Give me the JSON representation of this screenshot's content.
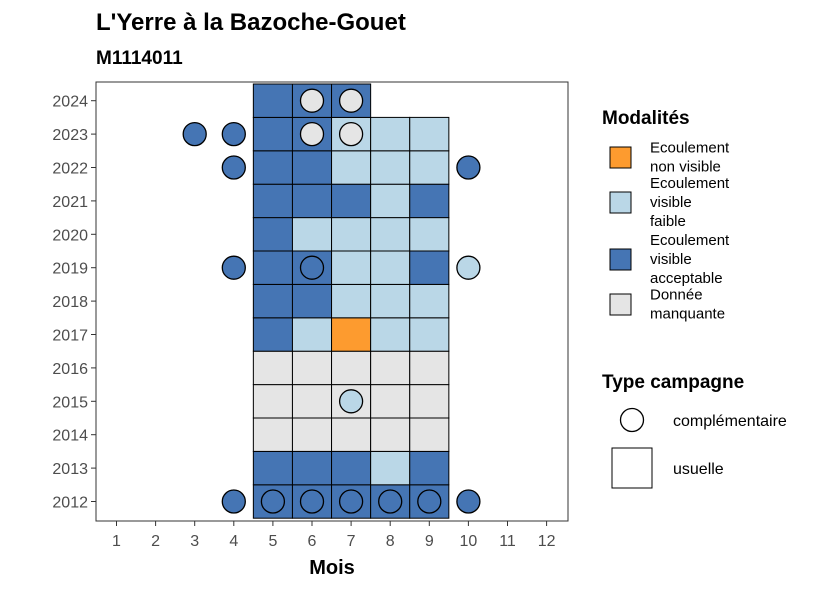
{
  "chart_data": {
    "type": "heatmap",
    "title": "L'Yerre à la Bazoche-Gouet",
    "subtitle": "M1114011",
    "xlabel": "Mois",
    "ylabel": "",
    "x_ticks": [
      "1",
      "2",
      "3",
      "4",
      "5",
      "6",
      "7",
      "8",
      "9",
      "10",
      "11",
      "12"
    ],
    "y_ticks": [
      "2012",
      "2013",
      "2014",
      "2015",
      "2016",
      "2017",
      "2018",
      "2019",
      "2020",
      "2021",
      "2022",
      "2023",
      "2024"
    ],
    "xlim": [
      1,
      12
    ],
    "ylim": [
      2012,
      2024
    ],
    "grid": false,
    "modalites": [
      {
        "key": "nv",
        "label": [
          "Ecoulement",
          "non visible"
        ],
        "color": "#fd9b2f"
      },
      {
        "key": "vf",
        "label": [
          "Ecoulement",
          "visible",
          "faible"
        ],
        "color": "#bad7e7"
      },
      {
        "key": "va",
        "label": [
          "Ecoulement",
          "visible",
          "acceptable"
        ],
        "color": "#4575b4"
      },
      {
        "key": "dm",
        "label": [
          "Donnée",
          "manquante"
        ],
        "color": "#e5e5e5"
      }
    ],
    "campaign_types": [
      {
        "key": "complementaire",
        "label": "complémentaire",
        "shape": "circle"
      },
      {
        "key": "usuelle",
        "label": "usuelle",
        "shape": "square"
      }
    ],
    "squares": [
      {
        "year": 2012,
        "month": 5,
        "value": "va"
      },
      {
        "year": 2012,
        "month": 6,
        "value": "va"
      },
      {
        "year": 2012,
        "month": 7,
        "value": "va"
      },
      {
        "year": 2012,
        "month": 8,
        "value": "va"
      },
      {
        "year": 2012,
        "month": 9,
        "value": "va"
      },
      {
        "year": 2013,
        "month": 5,
        "value": "va"
      },
      {
        "year": 2013,
        "month": 6,
        "value": "va"
      },
      {
        "year": 2013,
        "month": 7,
        "value": "va"
      },
      {
        "year": 2013,
        "month": 8,
        "value": "vf"
      },
      {
        "year": 2013,
        "month": 9,
        "value": "va"
      },
      {
        "year": 2014,
        "month": 5,
        "value": "dm"
      },
      {
        "year": 2014,
        "month": 6,
        "value": "dm"
      },
      {
        "year": 2014,
        "month": 7,
        "value": "dm"
      },
      {
        "year": 2014,
        "month": 8,
        "value": "dm"
      },
      {
        "year": 2014,
        "month": 9,
        "value": "dm"
      },
      {
        "year": 2015,
        "month": 5,
        "value": "dm"
      },
      {
        "year": 2015,
        "month": 6,
        "value": "dm"
      },
      {
        "year": 2015,
        "month": 7,
        "value": "dm"
      },
      {
        "year": 2015,
        "month": 8,
        "value": "dm"
      },
      {
        "year": 2015,
        "month": 9,
        "value": "dm"
      },
      {
        "year": 2016,
        "month": 5,
        "value": "dm"
      },
      {
        "year": 2016,
        "month": 6,
        "value": "dm"
      },
      {
        "year": 2016,
        "month": 7,
        "value": "dm"
      },
      {
        "year": 2016,
        "month": 8,
        "value": "dm"
      },
      {
        "year": 2016,
        "month": 9,
        "value": "dm"
      },
      {
        "year": 2017,
        "month": 5,
        "value": "va"
      },
      {
        "year": 2017,
        "month": 6,
        "value": "vf"
      },
      {
        "year": 2017,
        "month": 7,
        "value": "nv"
      },
      {
        "year": 2017,
        "month": 8,
        "value": "vf"
      },
      {
        "year": 2017,
        "month": 9,
        "value": "vf"
      },
      {
        "year": 2018,
        "month": 5,
        "value": "va"
      },
      {
        "year": 2018,
        "month": 6,
        "value": "va"
      },
      {
        "year": 2018,
        "month": 7,
        "value": "vf"
      },
      {
        "year": 2018,
        "month": 8,
        "value": "vf"
      },
      {
        "year": 2018,
        "month": 9,
        "value": "vf"
      },
      {
        "year": 2019,
        "month": 5,
        "value": "va"
      },
      {
        "year": 2019,
        "month": 6,
        "value": "va"
      },
      {
        "year": 2019,
        "month": 7,
        "value": "vf"
      },
      {
        "year": 2019,
        "month": 8,
        "value": "vf"
      },
      {
        "year": 2019,
        "month": 9,
        "value": "va"
      },
      {
        "year": 2020,
        "month": 5,
        "value": "va"
      },
      {
        "year": 2020,
        "month": 6,
        "value": "vf"
      },
      {
        "year": 2020,
        "month": 7,
        "value": "vf"
      },
      {
        "year": 2020,
        "month": 8,
        "value": "vf"
      },
      {
        "year": 2020,
        "month": 9,
        "value": "vf"
      },
      {
        "year": 2021,
        "month": 5,
        "value": "va"
      },
      {
        "year": 2021,
        "month": 6,
        "value": "va"
      },
      {
        "year": 2021,
        "month": 7,
        "value": "va"
      },
      {
        "year": 2021,
        "month": 8,
        "value": "vf"
      },
      {
        "year": 2021,
        "month": 9,
        "value": "va"
      },
      {
        "year": 2022,
        "month": 5,
        "value": "va"
      },
      {
        "year": 2022,
        "month": 6,
        "value": "va"
      },
      {
        "year": 2022,
        "month": 7,
        "value": "vf"
      },
      {
        "year": 2022,
        "month": 8,
        "value": "vf"
      },
      {
        "year": 2022,
        "month": 9,
        "value": "vf"
      },
      {
        "year": 2023,
        "month": 5,
        "value": "va"
      },
      {
        "year": 2023,
        "month": 6,
        "value": "va"
      },
      {
        "year": 2023,
        "month": 7,
        "value": "vf"
      },
      {
        "year": 2023,
        "month": 8,
        "value": "vf"
      },
      {
        "year": 2023,
        "month": 9,
        "value": "vf"
      },
      {
        "year": 2024,
        "month": 5,
        "value": "va"
      },
      {
        "year": 2024,
        "month": 6,
        "value": "va"
      },
      {
        "year": 2024,
        "month": 7,
        "value": "va"
      }
    ],
    "circles": [
      {
        "year": 2012,
        "month": 4,
        "value": "va"
      },
      {
        "year": 2012,
        "month": 5,
        "value": "va"
      },
      {
        "year": 2012,
        "month": 6,
        "value": "va"
      },
      {
        "year": 2012,
        "month": 7,
        "value": "va"
      },
      {
        "year": 2012,
        "month": 8,
        "value": "va"
      },
      {
        "year": 2012,
        "month": 9,
        "value": "va"
      },
      {
        "year": 2012,
        "month": 10,
        "value": "va"
      },
      {
        "year": 2015,
        "month": 7,
        "value": "vf"
      },
      {
        "year": 2019,
        "month": 4,
        "value": "va"
      },
      {
        "year": 2019,
        "month": 6,
        "value": "va"
      },
      {
        "year": 2019,
        "month": 10,
        "value": "vf"
      },
      {
        "year": 2022,
        "month": 4,
        "value": "va"
      },
      {
        "year": 2022,
        "month": 10,
        "value": "va"
      },
      {
        "year": 2023,
        "month": 3,
        "value": "va"
      },
      {
        "year": 2023,
        "month": 4,
        "value": "va"
      },
      {
        "year": 2023,
        "month": 6,
        "value": "dm"
      },
      {
        "year": 2023,
        "month": 7,
        "value": "dm"
      },
      {
        "year": 2024,
        "month": 6,
        "value": "dm"
      },
      {
        "year": 2024,
        "month": 7,
        "value": "dm"
      }
    ],
    "legend": {
      "modalites_title": "Modalités",
      "campaign_title": "Type campagne",
      "position": "right"
    }
  }
}
